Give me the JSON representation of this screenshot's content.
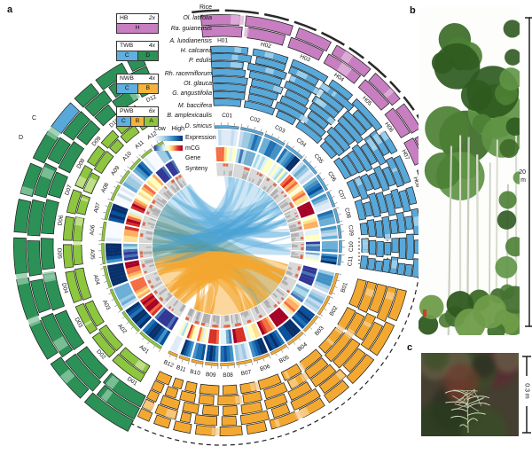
{
  "panel_labels": {
    "a": "a",
    "b": "b",
    "c": "c"
  },
  "species_legend": {
    "header": "Rice",
    "groups": [
      {
        "name": "HB",
        "ploidy": "2x",
        "cells": [
          {
            "label": "H",
            "color": "#c77fc1"
          }
        ],
        "species": [
          "Ol. latifolia",
          "Ra. guianensis"
        ]
      },
      {
        "name": "TWB",
        "ploidy": "4x",
        "cells": [
          {
            "label": "C",
            "color": "#5fb0e0"
          },
          {
            "label": "D",
            "color": "#2c9156"
          }
        ],
        "species": [
          "A. luodianensis",
          "H. calcarea",
          "P. edulis"
        ]
      },
      {
        "name": "NWB",
        "ploidy": "4x",
        "cells": [
          {
            "label": "C",
            "color": "#5fb0e0"
          },
          {
            "label": "B",
            "color": "#f3b33c"
          }
        ],
        "species": [
          "Rh. racemiflorum",
          "Ot. glauca",
          "G. angustifolia"
        ]
      },
      {
        "name": "PWB",
        "ploidy": "6x",
        "cells": [
          {
            "label": "C",
            "color": "#5fb0e0"
          },
          {
            "label": "B",
            "color": "#f3b33c"
          },
          {
            "label": "A",
            "color": "#8dc63f"
          }
        ],
        "species": [
          "M. baccifera",
          "B. amplexicaulis",
          "D. sinicus"
        ]
      }
    ]
  },
  "center_legend": {
    "low": "Low",
    "high": "High",
    "rows": [
      {
        "label": "Expression",
        "bar": "bar-expr"
      },
      {
        "label": "mCG",
        "bar": "bar-mcg"
      },
      {
        "label": "Gene",
        "bar": ""
      },
      {
        "label": "Synteny",
        "bar": ""
      }
    ]
  },
  "circos": {
    "colors": {
      "H": "#c77fc1",
      "C": "#58a9da",
      "D": "#2c9156",
      "B": "#f3a931",
      "A": "#8dc63f",
      "H_light": "#e0b6da",
      "C_light": "#abd6ee",
      "D_light": "#8cc8a4",
      "B_light": "#f8cd8c",
      "A_light": "#cbe49d"
    },
    "sectors": {
      "C": {
        "labels": [
          "C01",
          "C02",
          "C03",
          "C04",
          "C05",
          "C06",
          "C07",
          "C08",
          "C09",
          "C10",
          "C11"
        ],
        "a0": -4,
        "a1": 100
      },
      "B": {
        "labels": [
          "B01",
          "B02",
          "B03",
          "B04",
          "B05",
          "B06",
          "B07",
          "B08",
          "B09",
          "B10",
          "B11",
          "B12"
        ],
        "a0": 103,
        "a1": 207
      },
      "A": {
        "labels": [
          "A01",
          "A02",
          "A03",
          "A04",
          "A05",
          "A06",
          "A07",
          "A08",
          "A09",
          "A10",
          "A11",
          "A12"
        ],
        "a0": 210,
        "a1": 331
      }
    },
    "outer_bands": {
      "H": {
        "labels": [
          "H01",
          "H02",
          "H03",
          "H04",
          "H05",
          "H06",
          "H07",
          "H08",
          "H09",
          "H10",
          "H11"
        ],
        "a0": -6,
        "a1": 96,
        "rings": 2
      },
      "C": {
        "rings": 8
      },
      "B": {
        "rings": 5
      },
      "A": {
        "rings": 2
      },
      "D": {
        "labels": [
          "D01",
          "D02",
          "D03",
          "D04",
          "D05",
          "D06",
          "D07",
          "D08",
          "D09",
          "D10",
          "D11",
          "D12"
        ],
        "a0": 206,
        "a1": 338,
        "rings": 3
      }
    },
    "rice_ring_segments": 12,
    "translocation_labels": {
      "c": "C",
      "d": "D"
    }
  },
  "scale_bars": {
    "b": {
      "value": "20",
      "unit": "m"
    },
    "c": {
      "value": "0.3",
      "unit": "m"
    }
  },
  "heat_palettes": {
    "expression": [
      "#f7fbff",
      "#deebf7",
      "#c6dbef",
      "#9ecae1",
      "#6baed6",
      "#4292c6",
      "#2171b5",
      "#08519c",
      "#08306b"
    ],
    "mcg": [
      "#313695",
      "#4575b4",
      "#74add1",
      "#abd9e9",
      "#e0f3f8",
      "#ffffbf",
      "#fee090",
      "#fdae61",
      "#f46d43",
      "#d73027",
      "#a50026"
    ]
  }
}
